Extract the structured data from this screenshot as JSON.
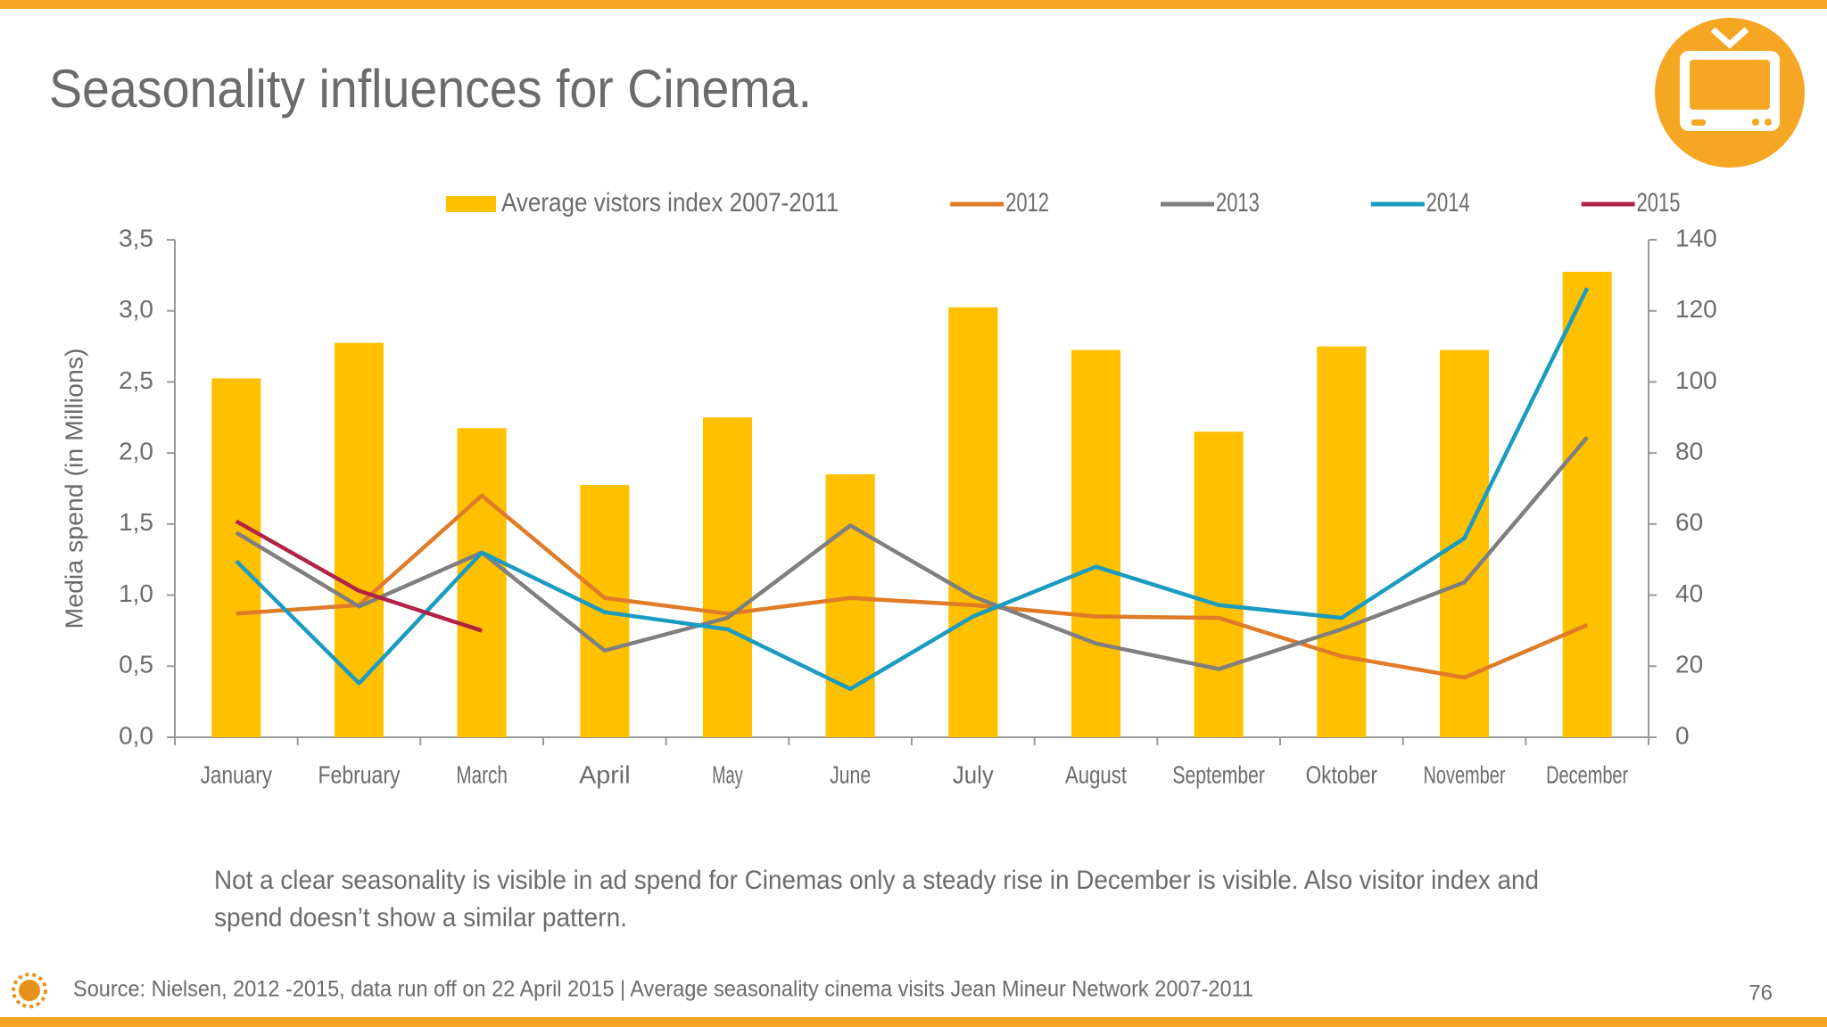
{
  "title": "Seasonality influences for Cinema.",
  "chart_data": {
    "type": "combo",
    "categories": [
      "January",
      "February",
      "March",
      "April",
      "May",
      "June",
      "July",
      "August",
      "September",
      "Oktober",
      "November",
      "December"
    ],
    "series": [
      {
        "name": "Average vistors index 2007-2011",
        "type": "bar",
        "axis": "y2",
        "color": "#ffc000",
        "values": [
          101,
          111,
          87,
          71,
          90,
          74,
          121,
          109,
          86,
          110,
          109,
          131
        ]
      },
      {
        "name": "2012",
        "type": "line",
        "color": "#e07b28",
        "values": [
          0.87,
          0.93,
          1.7,
          0.98,
          0.87,
          0.98,
          0.93,
          0.85,
          0.84,
          0.57,
          0.42,
          0.79
        ]
      },
      {
        "name": "2013",
        "type": "line",
        "color": "#7f7f7f",
        "values": [
          1.44,
          0.92,
          1.3,
          0.61,
          0.84,
          1.49,
          0.99,
          0.66,
          0.48,
          0.76,
          1.09,
          2.11
        ]
      },
      {
        "name": "2014",
        "type": "line",
        "color": "#1a9bc0",
        "values": [
          1.24,
          0.38,
          1.3,
          0.88,
          0.76,
          0.34,
          0.85,
          1.2,
          0.93,
          0.84,
          1.4,
          3.16
        ]
      },
      {
        "name": "2015",
        "type": "line",
        "color": "#b02346",
        "values": [
          1.52,
          1.03,
          0.75,
          null,
          null,
          null,
          null,
          null,
          null,
          null,
          null,
          null
        ]
      }
    ],
    "ylabel": "Media spend (in Millions)",
    "ylim": [
      0,
      3.5
    ],
    "yticks": [
      {
        "value": 0,
        "label": "0,0"
      },
      {
        "value": 0.5,
        "label": "0,5"
      },
      {
        "value": 1,
        "label": "1,0"
      },
      {
        "value": 1.5,
        "label": "1,5"
      },
      {
        "value": 2,
        "label": "2,0"
      },
      {
        "value": 2.5,
        "label": "2,5"
      },
      {
        "value": 3,
        "label": "3,0"
      },
      {
        "value": 3.5,
        "label": "3,5"
      }
    ],
    "y2lim": [
      0,
      140
    ],
    "y2ticks": [
      0,
      20,
      40,
      60,
      80,
      100,
      120,
      140
    ]
  },
  "notes": [
    "Not a clear seasonality is visible in ad spend for Cinemas only a steady rise in December is visible. Also visitor index and",
    "spend doesn’t show a similar pattern."
  ],
  "source": "Source: Nielsen, 2012 -2015, data run off on 22 April 2015 | Average seasonality cinema visits Jean Mineur Network 2007-2011",
  "page_number": "76"
}
